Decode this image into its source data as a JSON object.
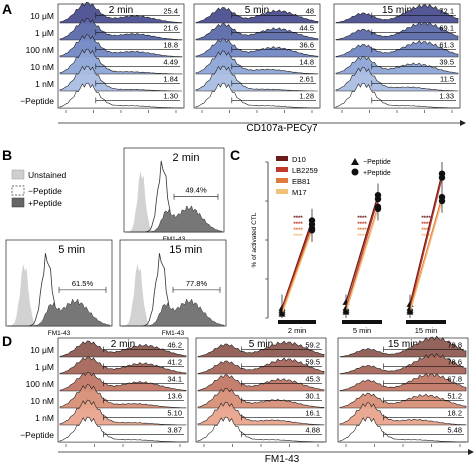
{
  "panel_A": {
    "letter": "A",
    "conditions": [
      "10 μM",
      "1 μM",
      "100 nM",
      "10 nM",
      "1 nM",
      "−Peptide"
    ],
    "times": [
      "2 min",
      "5 min",
      "15 min"
    ],
    "percentages": [
      [
        "25.4",
        "21.6",
        "18.8",
        "4.49",
        "1.84",
        "1.30"
      ],
      [
        "48",
        "44.5",
        "36.6",
        "14.8",
        "2.61",
        "1.28"
      ],
      [
        "72.1",
        "69.1",
        "61.3",
        "39.5",
        "11.5",
        "1.33"
      ]
    ],
    "axis_label": "CD107a-PECy7",
    "colors": [
      "#4c4f91",
      "#5c6aa9",
      "#7288c4",
      "#8ea5d6",
      "#aabde3",
      "#ffffff"
    ]
  },
  "panel_B": {
    "letter": "B",
    "legend": {
      "unstained": "Unstained",
      "minus_peptide": "−Peptide",
      "plus_peptide": "+Peptide"
    },
    "plots": [
      {
        "time": "2 min",
        "gate": "49.4%"
      },
      {
        "time": "5 min",
        "gate": "61.5%"
      },
      {
        "time": "15 min",
        "gate": "77.8%"
      }
    ],
    "axis_label": "FM1-43"
  },
  "panel_C": {
    "letter": "C",
    "ylabel": "% of activated CTL",
    "legend": [
      {
        "name": "D10",
        "color": "#6b1a1a"
      },
      {
        "name": "LB2259",
        "color": "#c0392b"
      },
      {
        "name": "EB81",
        "color": "#e07a3c"
      },
      {
        "name": "M17",
        "color": "#f0c17a"
      }
    ],
    "markers": {
      "minus": "−Peptide",
      "plus": "+Peptide"
    },
    "stars": "****",
    "times": [
      "2 min",
      "5 min",
      "15 min"
    ],
    "chart_data": {
      "type": "scatter",
      "categories": [
        "2 min",
        "5 min",
        "15 min"
      ],
      "ylim": [
        0,
        80
      ],
      "series": [
        {
          "name": "D10",
          "minus": [
            5,
            8,
            7
          ],
          "plus": [
            50,
            63,
            74
          ]
        },
        {
          "name": "LB2259",
          "minus": [
            4,
            5,
            5
          ],
          "plus": [
            48,
            61,
            72
          ]
        },
        {
          "name": "EB81",
          "minus": [
            3,
            4,
            4
          ],
          "plus": [
            46,
            57,
            62
          ]
        },
        {
          "name": "M17",
          "minus": [
            2,
            3,
            3
          ],
          "plus": [
            45,
            56,
            60
          ]
        }
      ]
    }
  },
  "panel_D": {
    "letter": "D",
    "conditions": [
      "10 μM",
      "1 μM",
      "100 nM",
      "10 nM",
      "1 nM",
      "−Peptide"
    ],
    "times": [
      "2 min",
      "5 min",
      "15 min"
    ],
    "percentages": [
      [
        "46.2",
        "41.2",
        "34.1",
        "13.6",
        "5.10",
        "3.87"
      ],
      [
        "59.2",
        "59.5",
        "45.3",
        "30.1",
        "16.1",
        "4.88"
      ],
      [
        "79.8",
        "78.6",
        "67.8",
        "51.2",
        "18.2",
        "5.48"
      ]
    ],
    "axis_label": "FM1-43",
    "colors": [
      "#8e5b52",
      "#a5665b",
      "#c27866",
      "#d88f78",
      "#e8a48c",
      "#ffffff"
    ]
  }
}
